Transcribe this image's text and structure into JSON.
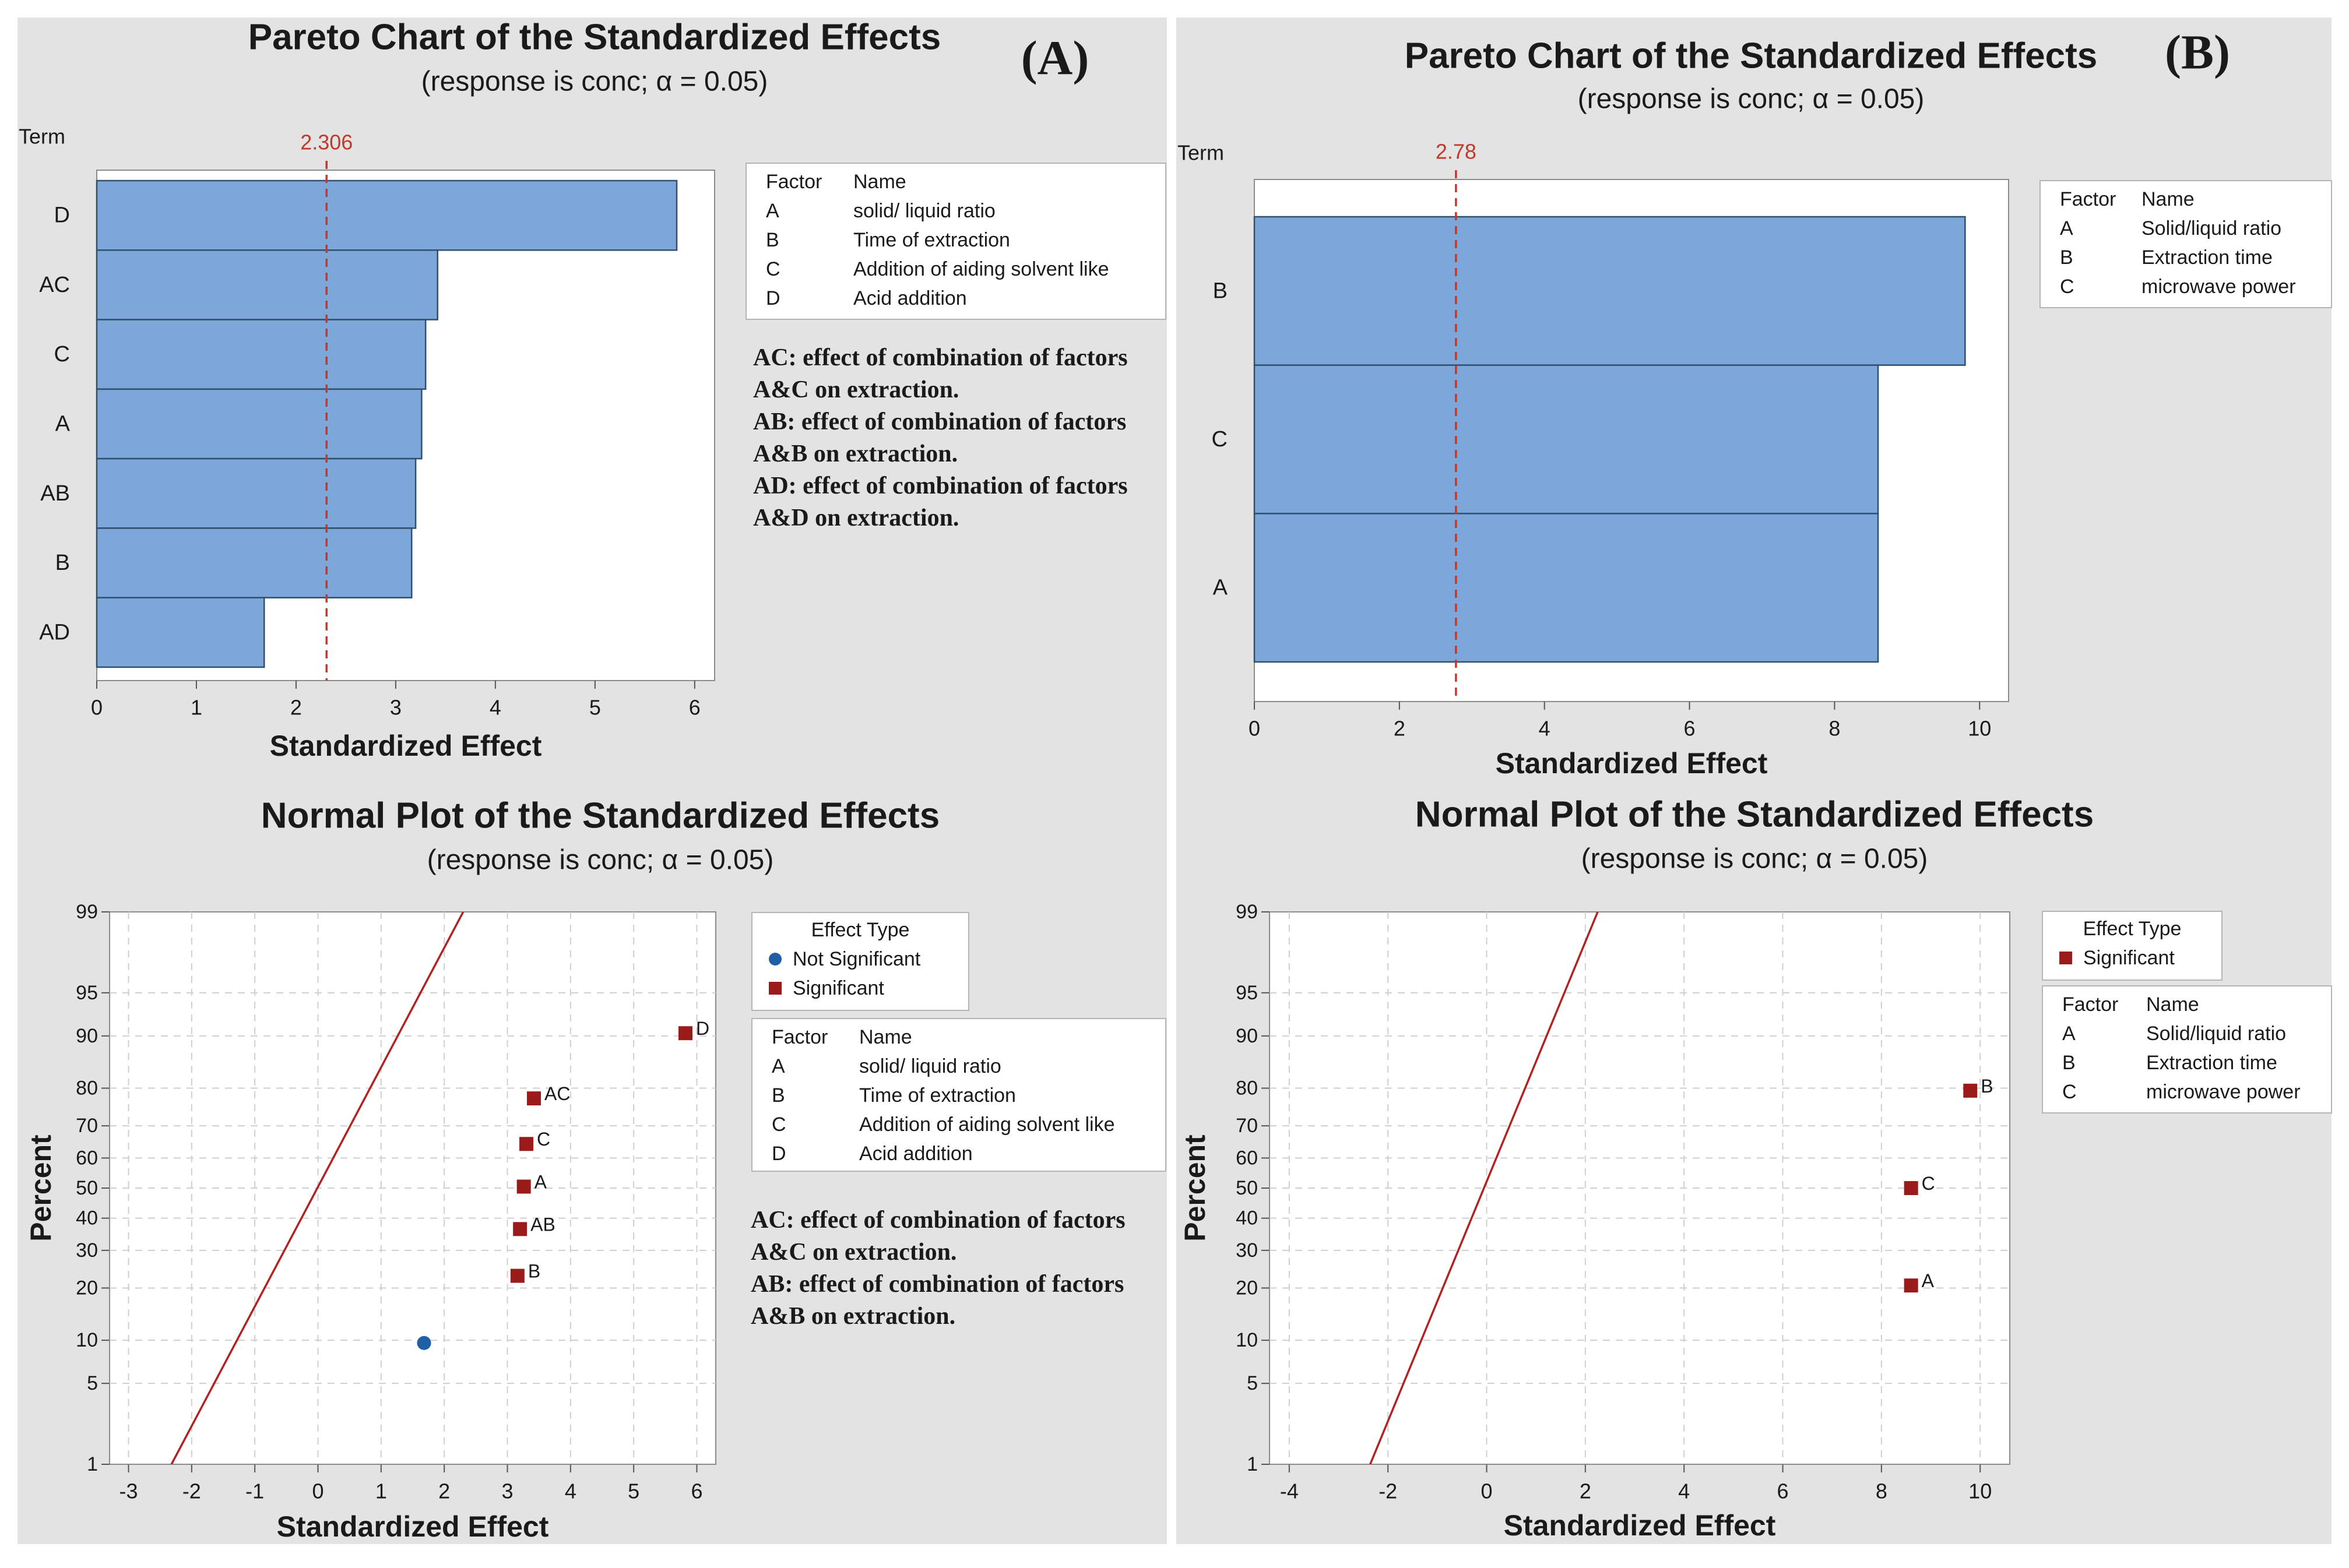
{
  "chart_data": [
    {
      "type": "bar",
      "orientation": "horizontal",
      "panel_label": "(A)",
      "title": "Pareto Chart of the Standardized Effects",
      "subtitle": "(response is conc; α = 0.05)",
      "xlabel": "Standardized Effect",
      "ylabel": "Term",
      "categories": [
        "D",
        "AC",
        "C",
        "A",
        "AB",
        "B",
        "AD"
      ],
      "values": [
        5.82,
        3.42,
        3.3,
        3.26,
        3.2,
        3.16,
        1.68
      ],
      "xlim": [
        0,
        6.2
      ],
      "xticks": [
        "0",
        "1",
        "2",
        "3",
        "4",
        "5",
        "6"
      ],
      "reference_line": {
        "value": 2.306,
        "label": "2.306",
        "color": "#c0392b"
      },
      "bar_color": "#7da7d9",
      "legend": {
        "headers": [
          "Factor",
          "Name"
        ],
        "rows": [
          [
            "A",
            "solid/ liquid ratio"
          ],
          [
            "B",
            "Time of extraction"
          ],
          [
            "C",
            "Addition of aiding solvent like"
          ],
          [
            "D",
            "Acid addition"
          ]
        ]
      },
      "notes": [
        "AC: effect of combination of factors",
        "A&C on extraction.",
        "AB: effect of combination of factors",
        "A&B on extraction.",
        "AD: effect of combination of factors",
        "A&D on extraction."
      ]
    },
    {
      "type": "bar",
      "orientation": "horizontal",
      "panel_label": "(B)",
      "title": "Pareto Chart of the Standardized Effects",
      "subtitle": "(response is conc; α = 0.05)",
      "xlabel": "Standardized Effect",
      "ylabel": "Term",
      "categories": [
        "B",
        "C",
        "A"
      ],
      "values": [
        9.8,
        8.6,
        8.6
      ],
      "xlim": [
        0,
        10.4
      ],
      "xticks": [
        "0",
        "2",
        "4",
        "6",
        "8",
        "10"
      ],
      "reference_line": {
        "value": 2.78,
        "label": "2.78",
        "color": "#c0392b"
      },
      "bar_color": "#7da7d9",
      "legend": {
        "headers": [
          "Factor",
          "Name"
        ],
        "rows": [
          [
            "A",
            "Solid/liquid ratio"
          ],
          [
            "B",
            "Extraction time"
          ],
          [
            "C",
            "microwave power"
          ]
        ]
      }
    },
    {
      "type": "scatter",
      "title": "Normal Plot of the Standardized Effects",
      "subtitle": "(response is conc; α = 0.05)",
      "xlabel": "Standardized Effect",
      "ylabel": "Percent",
      "xlim": [
        -3.3,
        6.3
      ],
      "xticks": [
        "-3",
        "-2",
        "-1",
        "0",
        "1",
        "2",
        "3",
        "4",
        "5",
        "6"
      ],
      "yticks": [
        "1",
        "5",
        "10",
        "20",
        "30",
        "40",
        "50",
        "60",
        "70",
        "80",
        "90",
        "95",
        "99"
      ],
      "fit_line": {
        "x_at_1": -2.32,
        "x_at_99": 2.3,
        "color": "#b22222"
      },
      "points": [
        {
          "label": "D",
          "x": 5.82,
          "percent": 90.4,
          "significant": true
        },
        {
          "label": "AC",
          "x": 3.42,
          "percent": 77.5,
          "significant": true
        },
        {
          "label": "C",
          "x": 3.3,
          "percent": 64.5,
          "significant": true
        },
        {
          "label": "A",
          "x": 3.26,
          "percent": 50.5,
          "significant": true
        },
        {
          "label": "AB",
          "x": 3.2,
          "percent": 36.5,
          "significant": true
        },
        {
          "label": "B",
          "x": 3.16,
          "percent": 23,
          "significant": true
        },
        {
          "label": "",
          "x": 1.68,
          "percent": 9.6,
          "significant": false
        }
      ],
      "effect_legend": {
        "title": "Effect Type",
        "not_significant": "Not Significant",
        "significant": "Significant",
        "not_significant_color": "#1f5fa6",
        "significant_color": "#9b1b1b"
      },
      "legend": {
        "headers": [
          "Factor",
          "Name"
        ],
        "rows": [
          [
            "A",
            "solid/ liquid ratio"
          ],
          [
            "B",
            "Time of extraction"
          ],
          [
            "C",
            "Addition of aiding solvent like"
          ],
          [
            "D",
            "Acid addition"
          ]
        ]
      },
      "notes": [
        "AC: effect of combination of factors",
        "A&C on extraction.",
        "AB: effect of combination of factors",
        "A&B on extraction."
      ]
    },
    {
      "type": "scatter",
      "title": "Normal Plot of the Standardized Effects",
      "subtitle": "(response is conc; α = 0.05)",
      "xlabel": "Standardized Effect",
      "ylabel": "Percent",
      "xlim": [
        -4.4,
        10.6
      ],
      "xticks": [
        "-4",
        "-2",
        "0",
        "2",
        "4",
        "6",
        "8",
        "10"
      ],
      "yticks": [
        "1",
        "5",
        "10",
        "20",
        "30",
        "40",
        "50",
        "60",
        "70",
        "80",
        "90",
        "95",
        "99"
      ],
      "fit_line": {
        "x_at_1": -2.36,
        "x_at_99": 2.25,
        "color": "#b22222"
      },
      "points": [
        {
          "label": "B",
          "x": 9.8,
          "percent": 79.4,
          "significant": true
        },
        {
          "label": "C",
          "x": 8.6,
          "percent": 50,
          "significant": true
        },
        {
          "label": "A",
          "x": 8.6,
          "percent": 20.6,
          "significant": true
        }
      ],
      "effect_legend": {
        "title": "Effect Type",
        "significant": "Significant",
        "significant_color": "#9b1b1b"
      },
      "legend": {
        "headers": [
          "Factor",
          "Name"
        ],
        "rows": [
          [
            "A",
            "Solid/liquid ratio"
          ],
          [
            "B",
            "Extraction time"
          ],
          [
            "C",
            "microwave power"
          ]
        ]
      }
    }
  ]
}
